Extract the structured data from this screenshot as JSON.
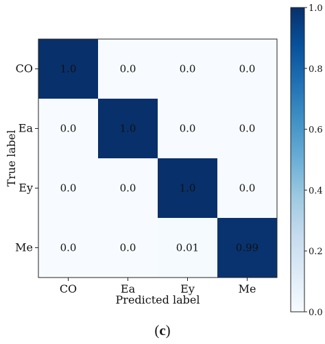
{
  "caption": {
    "open": "(",
    "letter": "c",
    "close": ")"
  },
  "chart_data": {
    "type": "heatmap",
    "title": "",
    "xlabel": "Predicted label",
    "ylabel": "True label",
    "x_categories": [
      "CO",
      "Ea",
      "Ey",
      "Me"
    ],
    "y_categories": [
      "CO",
      "Ea",
      "Ey",
      "Me"
    ],
    "values": [
      [
        1.0,
        0.0,
        0.0,
        0.0
      ],
      [
        0.0,
        1.0,
        0.0,
        0.0
      ],
      [
        0.0,
        0.0,
        1.0,
        0.0
      ],
      [
        0.0,
        0.0,
        0.01,
        0.99
      ]
    ],
    "cell_labels": [
      [
        "1.0",
        "0.0",
        "0.0",
        "0.0"
      ],
      [
        "0.0",
        "1.0",
        "0.0",
        "0.0"
      ],
      [
        "0.0",
        "0.0",
        "1.0",
        "0.0"
      ],
      [
        "0.0",
        "0.0",
        "0.01",
        "0.99"
      ]
    ],
    "colorbar": {
      "range": [
        0.0,
        1.0
      ],
      "ticks": [
        0.0,
        0.2,
        0.4,
        0.6,
        0.8,
        1.0
      ],
      "tick_labels": [
        "0.0",
        "0.2",
        "0.4",
        "0.6",
        "0.8",
        "1.0"
      ],
      "colormap": "Blues",
      "color_low": "#f7fbff",
      "color_high": "#08306b"
    },
    "grid": false,
    "legend": "colorbar-right"
  }
}
